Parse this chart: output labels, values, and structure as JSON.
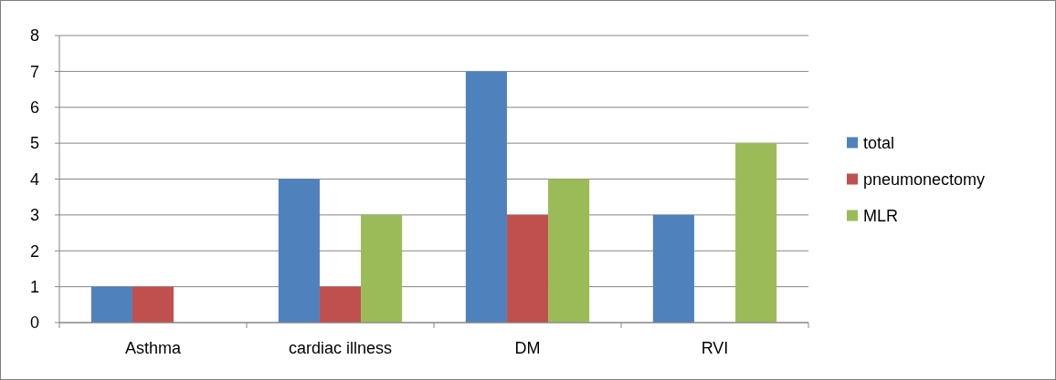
{
  "chart_data": {
    "type": "bar",
    "categories": [
      "Asthma",
      "cardiac illness",
      "DM",
      "RVI"
    ],
    "series": [
      {
        "name": "total",
        "color": "#4f81bd",
        "values": [
          1,
          4,
          7,
          3
        ]
      },
      {
        "name": "pneumonectomy",
        "color": "#c0504d",
        "values": [
          1,
          1,
          3,
          0
        ]
      },
      {
        "name": "MLR",
        "color": "#9bbb59",
        "values": [
          0,
          3,
          4,
          5
        ]
      }
    ],
    "ylim": [
      0,
      8
    ],
    "yticks": [
      0,
      1,
      2,
      3,
      4,
      5,
      6,
      7,
      8
    ],
    "grid": "y",
    "legend": "right"
  }
}
